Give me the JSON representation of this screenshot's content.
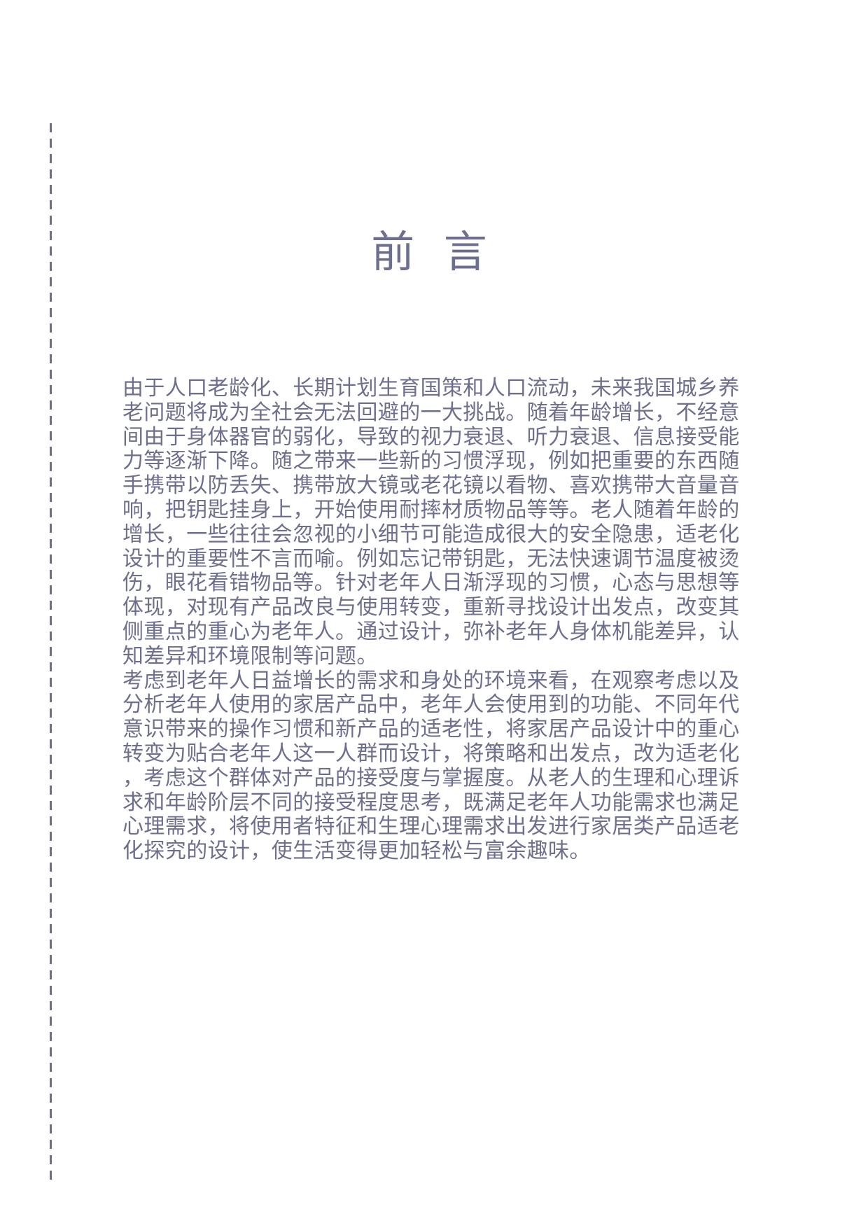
{
  "page": {
    "title": "前 言",
    "colors": {
      "ink": "#6e6e8e",
      "background": "#ffffff"
    },
    "left_rule": {
      "style": "dashed-vertical"
    },
    "paragraphs": [
      {
        "lines": [
          "由于人口老龄化、长期计划生育国策和人口流动，未来我国城乡养",
          "老问题将成为全社会无法回避的一大挑战。随着年龄增长，不经意",
          "间由于身体器官的弱化，导致的视力衰退、听力衰退、信息接受能",
          "力等逐渐下降。随之带来一些新的习惯浮现，例如把重要的东西随",
          "手携带以防丢失、携带放大镜或老花镜以看物、喜欢携带大音量音",
          "响，把钥匙挂身上，开始使用耐摔材质物品等等。老人随着年龄的",
          "增长，一些往往会忽视的小细节可能造成很大的安全隐患，适老化",
          "设计的重要性不言而喻。例如忘记带钥匙，无法快速调节温度被烫",
          "伤，眼花看错物品等。针对老年人日渐浮现的习惯，心态与思想等",
          "体现，对现有产品改良与使用转变，重新寻找设计出发点，改变其",
          "侧重点的重心为老年人。通过设计，弥补老年人身体机能差异，认",
          "知差异和环境限制等问题。"
        ]
      },
      {
        "lines": [
          "考虑到老年人日益增长的需求和身处的环境来看，在观察考虑以及",
          "分析老年人使用的家居产品中，老年人会使用到的功能、不同年代",
          "意识带来的操作习惯和新产品的适老性，将家居产品设计中的重心",
          "转变为贴合老年人这一人群而设计，将策略和出发点，改为适老化",
          "，考虑这个群体对产品的接受度与掌握度。从老人的生理和心理诉",
          "求和年龄阶层不同的接受程度思考，既满足老年人功能需求也满足",
          "心理需求，将使用者特征和生理心理需求出发进行家居类产品适老",
          "化探究的设计，使生活变得更加轻松与富余趣味。"
        ]
      }
    ]
  }
}
